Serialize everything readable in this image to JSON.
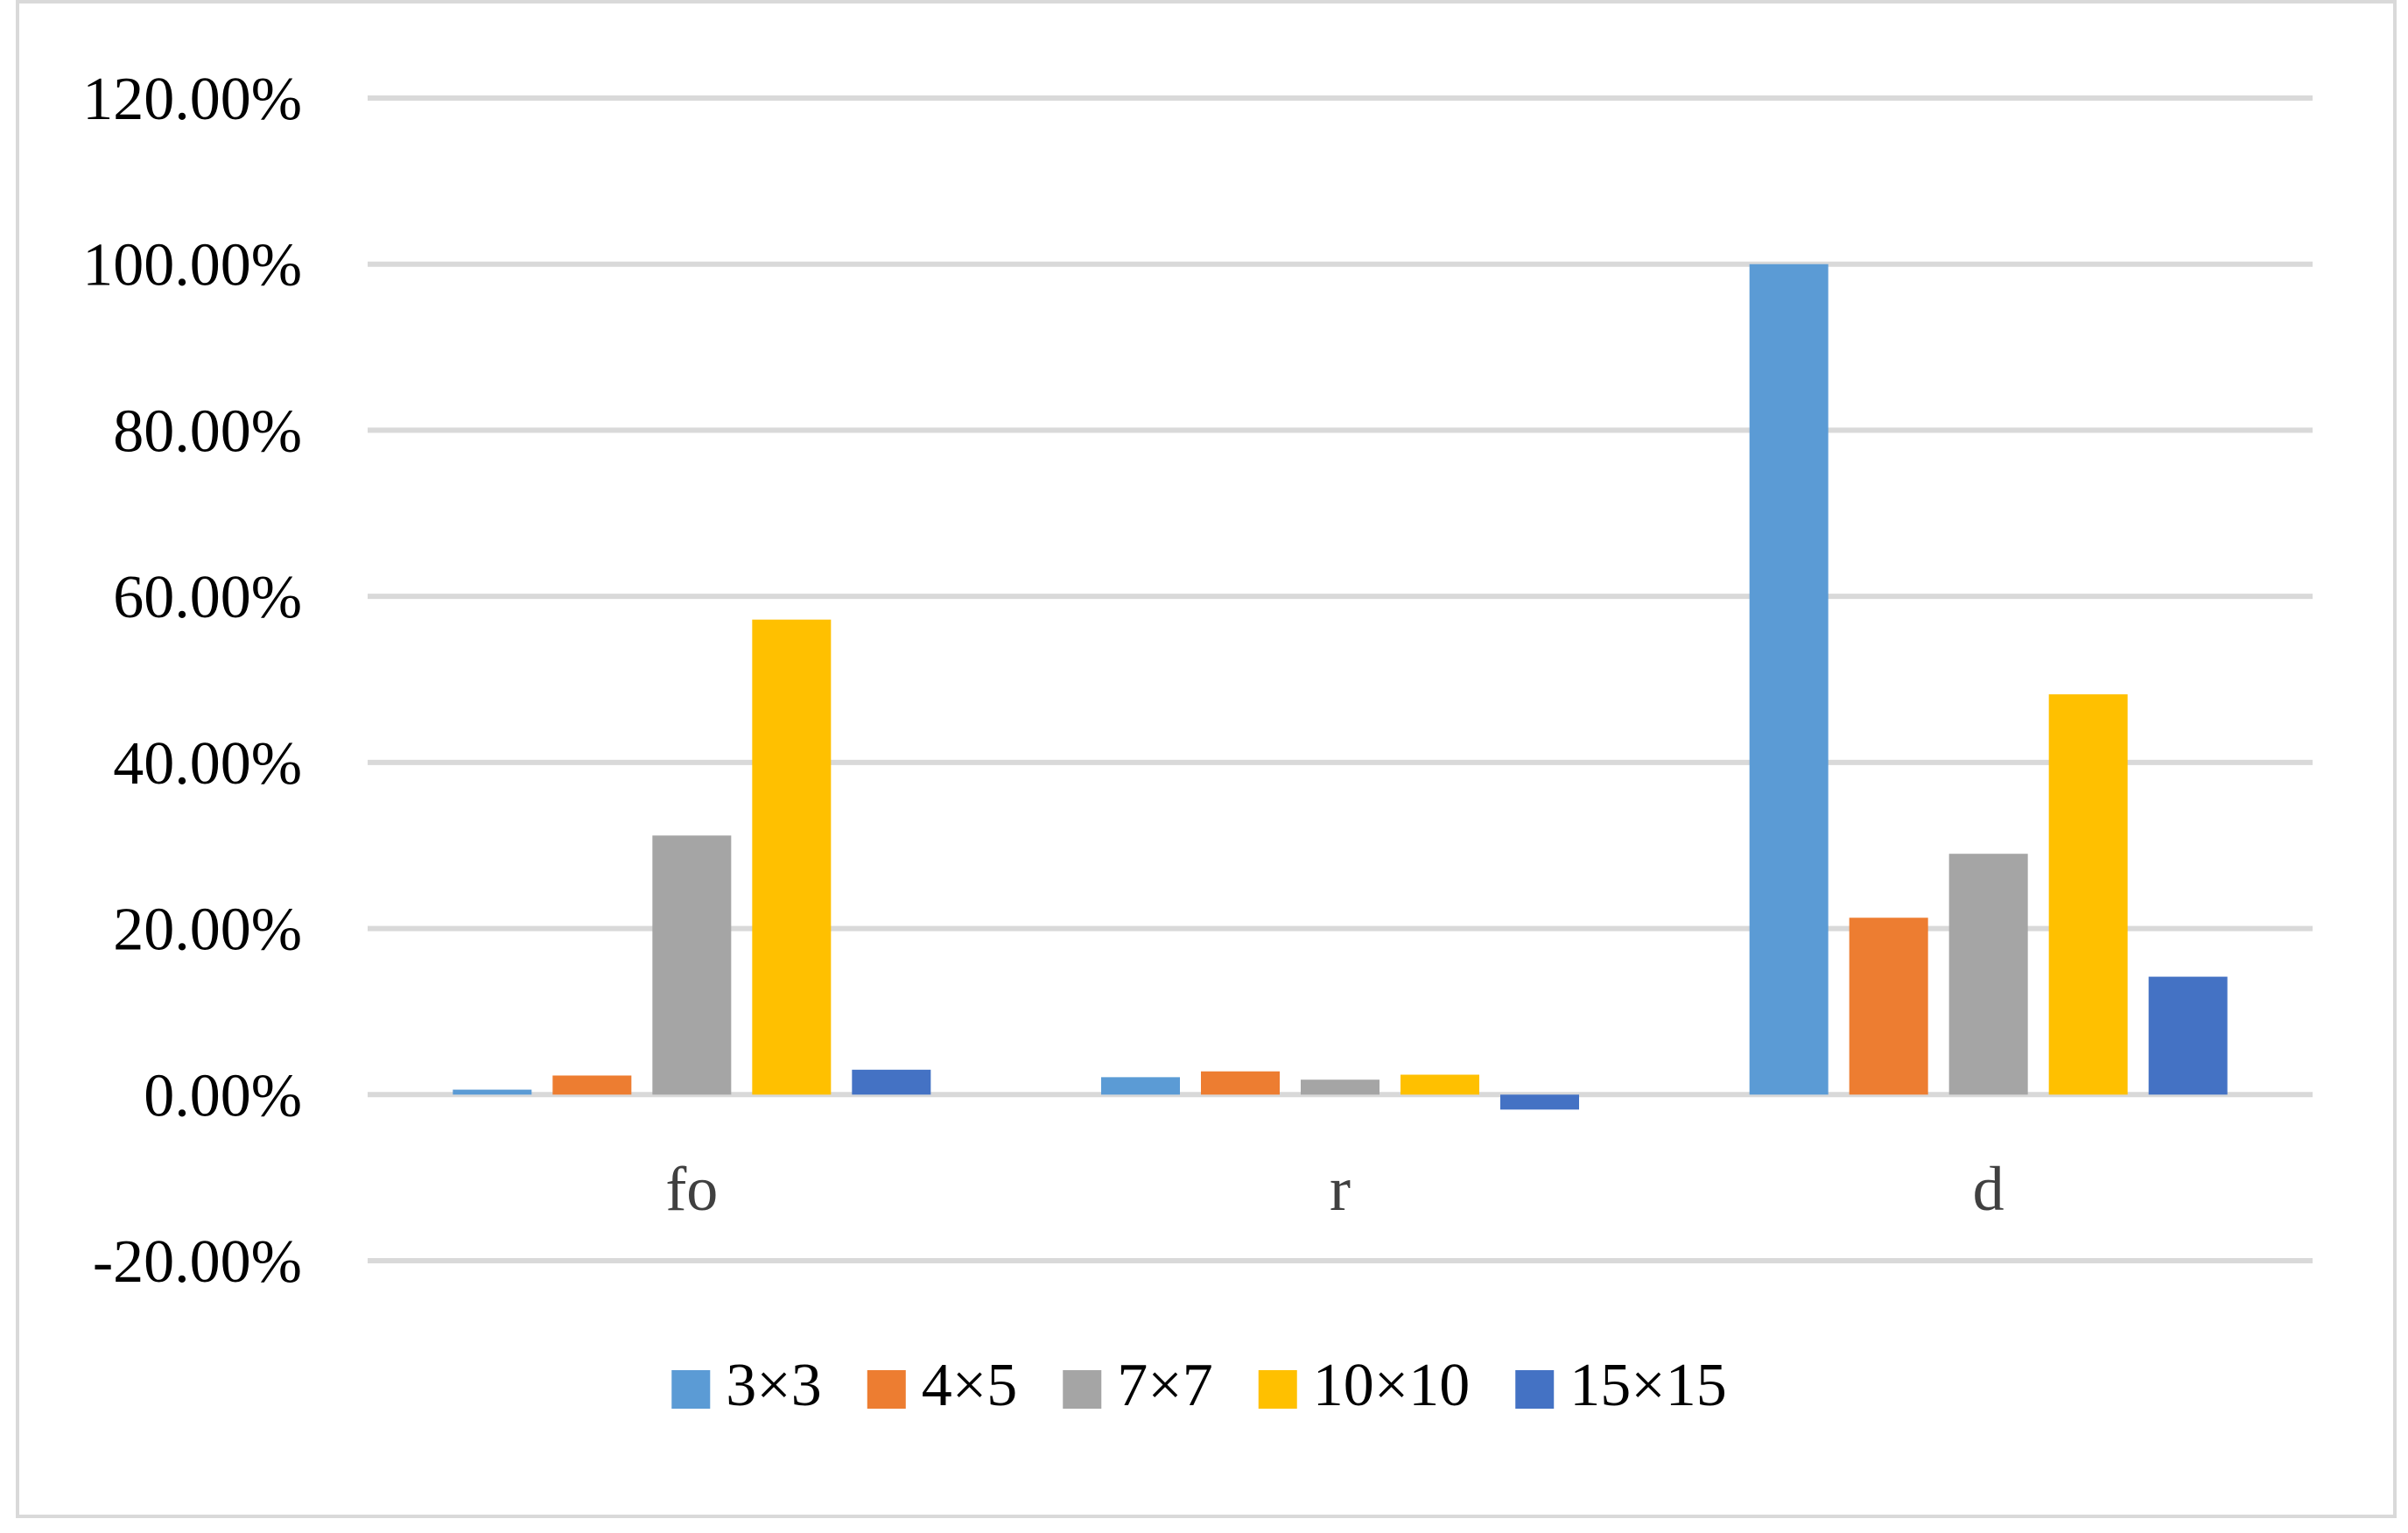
{
  "chart_data": {
    "type": "bar",
    "title": "",
    "xlabel": "",
    "ylabel": "",
    "categories": [
      "fo",
      "r",
      "d"
    ],
    "ylim": [
      -0.2,
      1.2
    ],
    "y_ticks": [
      -0.2,
      0,
      0.2,
      0.4,
      0.6,
      0.8,
      1.0,
      1.2
    ],
    "y_tick_labels": [
      "-20.00%",
      "0.00%",
      "20.00%",
      "40.00%",
      "60.00%",
      "80.00%",
      "100.00%",
      "120.00%"
    ],
    "grid": true,
    "legend_position": "bottom",
    "series": [
      {
        "name": "3×3",
        "color": "#5b9bd5",
        "values": [
          0.006,
          0.021,
          1.0
        ]
      },
      {
        "name": "4×5",
        "color": "#ed7d31",
        "values": [
          0.023,
          0.028,
          0.213
        ]
      },
      {
        "name": "7×7",
        "color": "#a5a5a5",
        "values": [
          0.312,
          0.018,
          0.29
        ]
      },
      {
        "name": "10×10",
        "color": "#ffc000",
        "values": [
          0.572,
          0.024,
          0.482
        ]
      },
      {
        "name": "15×15",
        "color": "#4472c4",
        "values": [
          0.03,
          -0.018,
          0.142
        ]
      }
    ]
  }
}
